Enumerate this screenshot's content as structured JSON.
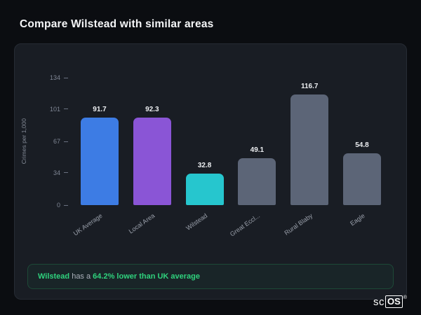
{
  "page": {
    "title": "Compare Wilstead with similar areas"
  },
  "chart_data": {
    "type": "bar",
    "title": "",
    "xlabel": "",
    "ylabel": "Crimes per 1,000",
    "categories": [
      "UK Average",
      "Local Area",
      "Wilstead",
      "Great Eccl...",
      "Rural Blaby",
      "Eagle"
    ],
    "values": [
      91.7,
      92.3,
      32.8,
      49.1,
      116.7,
      54.8
    ],
    "value_labels": [
      "91.7",
      "92.3",
      "32.8",
      "49.1",
      "116.7",
      "54.8"
    ],
    "bar_colors": [
      "#3d7ce4",
      "#8a55d6",
      "#26c6ce",
      "#5c6577",
      "#5c6577",
      "#5c6577"
    ],
    "yticks": [
      0,
      34,
      67,
      101,
      134
    ],
    "ylim": [
      0,
      134
    ],
    "grid": false,
    "legend": "none"
  },
  "note": {
    "subject": "Wilstead",
    "connector": " has a ",
    "highlight": "64.2% lower than UK average"
  },
  "watermark": {
    "prefix": "sc",
    "suffix": "OS",
    "reg": "®"
  }
}
